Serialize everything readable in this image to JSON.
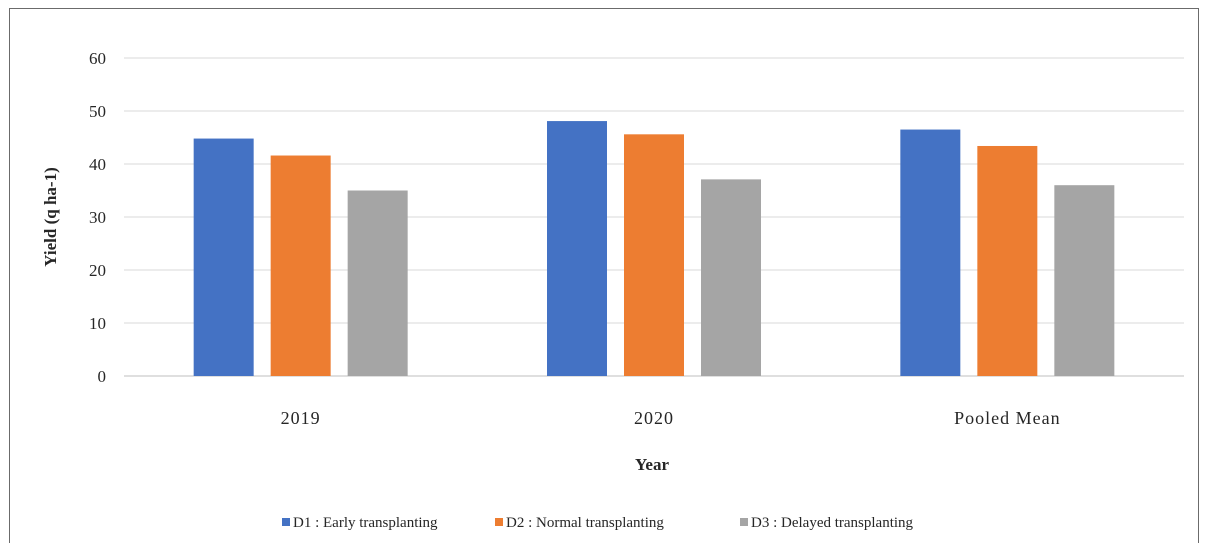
{
  "chart_data": {
    "type": "bar",
    "title": "",
    "xlabel": "Year",
    "ylabel": "Yield (q ha-1)",
    "ylim": [
      0,
      60
    ],
    "yticks": [
      0,
      10,
      20,
      30,
      40,
      50,
      60
    ],
    "grid": true,
    "legend_position": "bottom",
    "categories": [
      "2019",
      "2020",
      "Pooled Mean"
    ],
    "series": [
      {
        "name": "D1 : Early transplanting",
        "color": "#4472C4",
        "values": [
          44.8,
          48.1,
          46.5
        ]
      },
      {
        "name": "D2 : Normal transplanting",
        "color": "#ED7D31",
        "values": [
          41.6,
          45.6,
          43.4
        ]
      },
      {
        "name": "D3 : Delayed transplanting",
        "color": "#A5A5A5",
        "values": [
          35.0,
          37.1,
          36.0
        ]
      }
    ]
  }
}
